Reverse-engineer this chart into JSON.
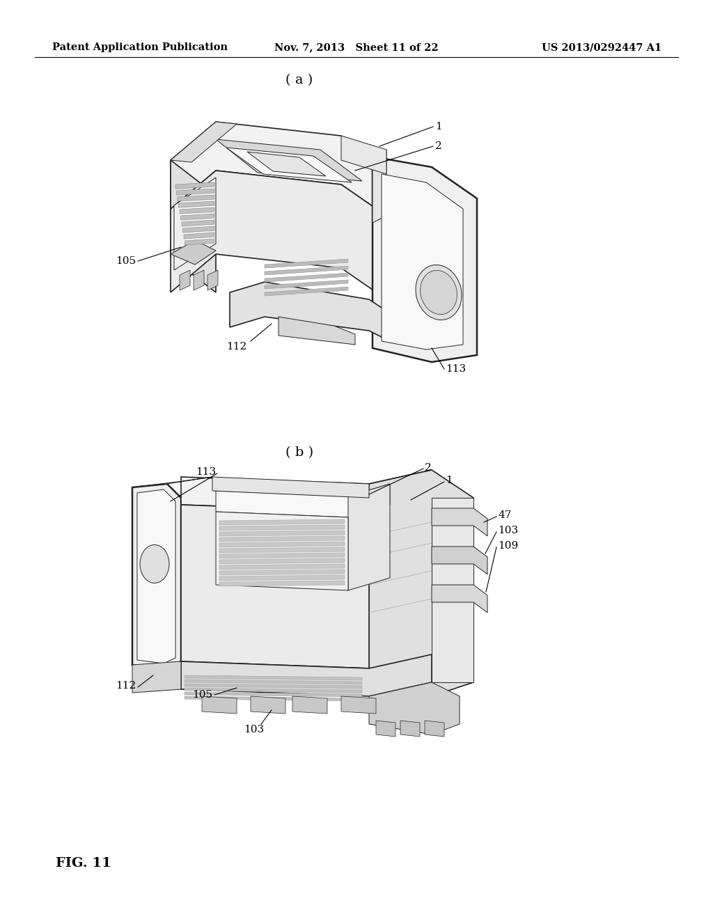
{
  "background_color": "#ffffff",
  "header_left": "Patent Application Publication",
  "header_center": "Nov. 7, 2013   Sheet 11 of 22",
  "header_right": "US 2013/0292447 A1",
  "header_fontsize": 10.5,
  "fig_label_a": "( a )",
  "fig_label_b": "( b )",
  "fig_label_bottom": "FIG. 11",
  "annotation_fontsize": 11,
  "fig_label_fontsize": 14
}
